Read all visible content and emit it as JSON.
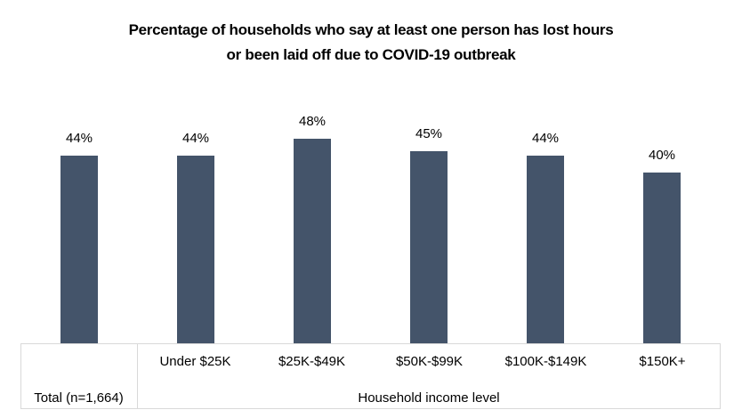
{
  "chart_data": {
    "type": "bar",
    "title": "Percentage of households who say at least one person has lost hours or been laid off due to COVID-19 outbreak",
    "title_lines": [
      "Percentage of households who say at least one person has lost hours",
      "or been laid off due to COVID-19 outbreak"
    ],
    "categories": [
      "Total (n=1,664)",
      "Under $25K",
      "$25K-$49K",
      "$50K-$99K",
      "$100K-$149K",
      "$150K+"
    ],
    "values": [
      44,
      44,
      48,
      45,
      44,
      40
    ],
    "data_labels": [
      "44%",
      "44%",
      "48%",
      "45%",
      "44%",
      "40%"
    ],
    "axis": {
      "row1_labels": [
        "",
        "Under $25K",
        "$25K-$49K",
        "$50K-$99K",
        "$100K-$149K",
        "$150K+"
      ],
      "row2_groups": [
        {
          "label": "Total (n=1,664)",
          "span": 1
        },
        {
          "label": "Household income level",
          "span": 5
        }
      ],
      "xlabel": "Household income level"
    },
    "ylabel": "",
    "ylim": [
      0,
      50
    ],
    "value_unit": "%",
    "bar_color": "#44546A",
    "text_color": "#000000",
    "axis_line_color": "#D9D9D9",
    "gridlines": false,
    "legend": false,
    "value_axis_visible": false
  }
}
